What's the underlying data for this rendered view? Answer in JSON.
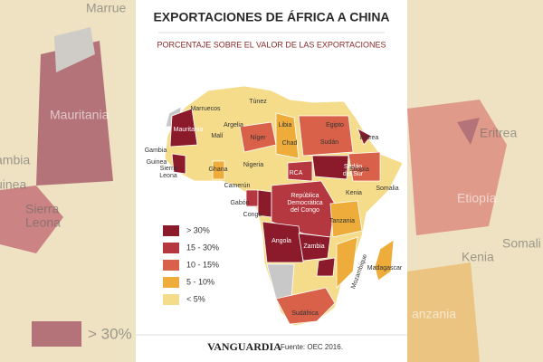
{
  "header": {
    "title": "EXPORTACIONES DE ÁFRICA A CHINA",
    "subtitle": "PORCENTAJE SOBRE EL VALOR DE LAS EXPORTACIONES"
  },
  "legend": [
    {
      "label": "> 30%",
      "color": "#8b1a2b"
    },
    {
      "label": "15 - 30%",
      "color": "#b5373f"
    },
    {
      "label": "10 - 15%",
      "color": "#d9614a"
    },
    {
      "label": "5 - 10%",
      "color": "#eead3a"
    },
    {
      "label": "< 5%",
      "color": "#f5dc8a"
    }
  ],
  "countries": [
    [
      "Túnez"
    ],
    [
      "Marruecos"
    ],
    [
      "Argelia"
    ],
    [
      "Libia"
    ],
    [
      "Egipto"
    ],
    [
      "Mauritania"
    ],
    [
      "Malí"
    ],
    [
      "Níger"
    ],
    [
      "Chad"
    ],
    [
      "Sudán"
    ],
    [
      "Eritrea"
    ],
    [
      "Gambia"
    ],
    [
      "Guinea"
    ],
    [
      "Sierra",
      "Leona"
    ],
    [
      "Ghana"
    ],
    [
      "Nigeria"
    ],
    [
      "RCA"
    ],
    [
      "Sudán",
      "del Sur"
    ],
    [
      "Etiopía"
    ],
    [
      "Somalia"
    ],
    [
      "Camerún"
    ],
    [
      "Gabón"
    ],
    [
      "Congo"
    ],
    [
      "República",
      "Democrática",
      "del Congo"
    ],
    [
      "Kenia"
    ],
    [
      "Tanzania"
    ],
    [
      "Angola"
    ],
    [
      "Zambia"
    ],
    [
      "Mozambique"
    ],
    [
      "Madagascar"
    ],
    [
      "Sudáfrica"
    ]
  ],
  "background": {
    "left": [
      "Marrue",
      "Mauritania",
      "ambia",
      "uinea",
      "Sierra",
      "Leona",
      "> 30%"
    ],
    "right": [
      "Eritrea",
      "Etiopía",
      "Kenia",
      "Somali",
      "anzania"
    ]
  },
  "footer": {
    "brand": "VANGUARDIA",
    "source": "Fuente: OEC 2016."
  }
}
